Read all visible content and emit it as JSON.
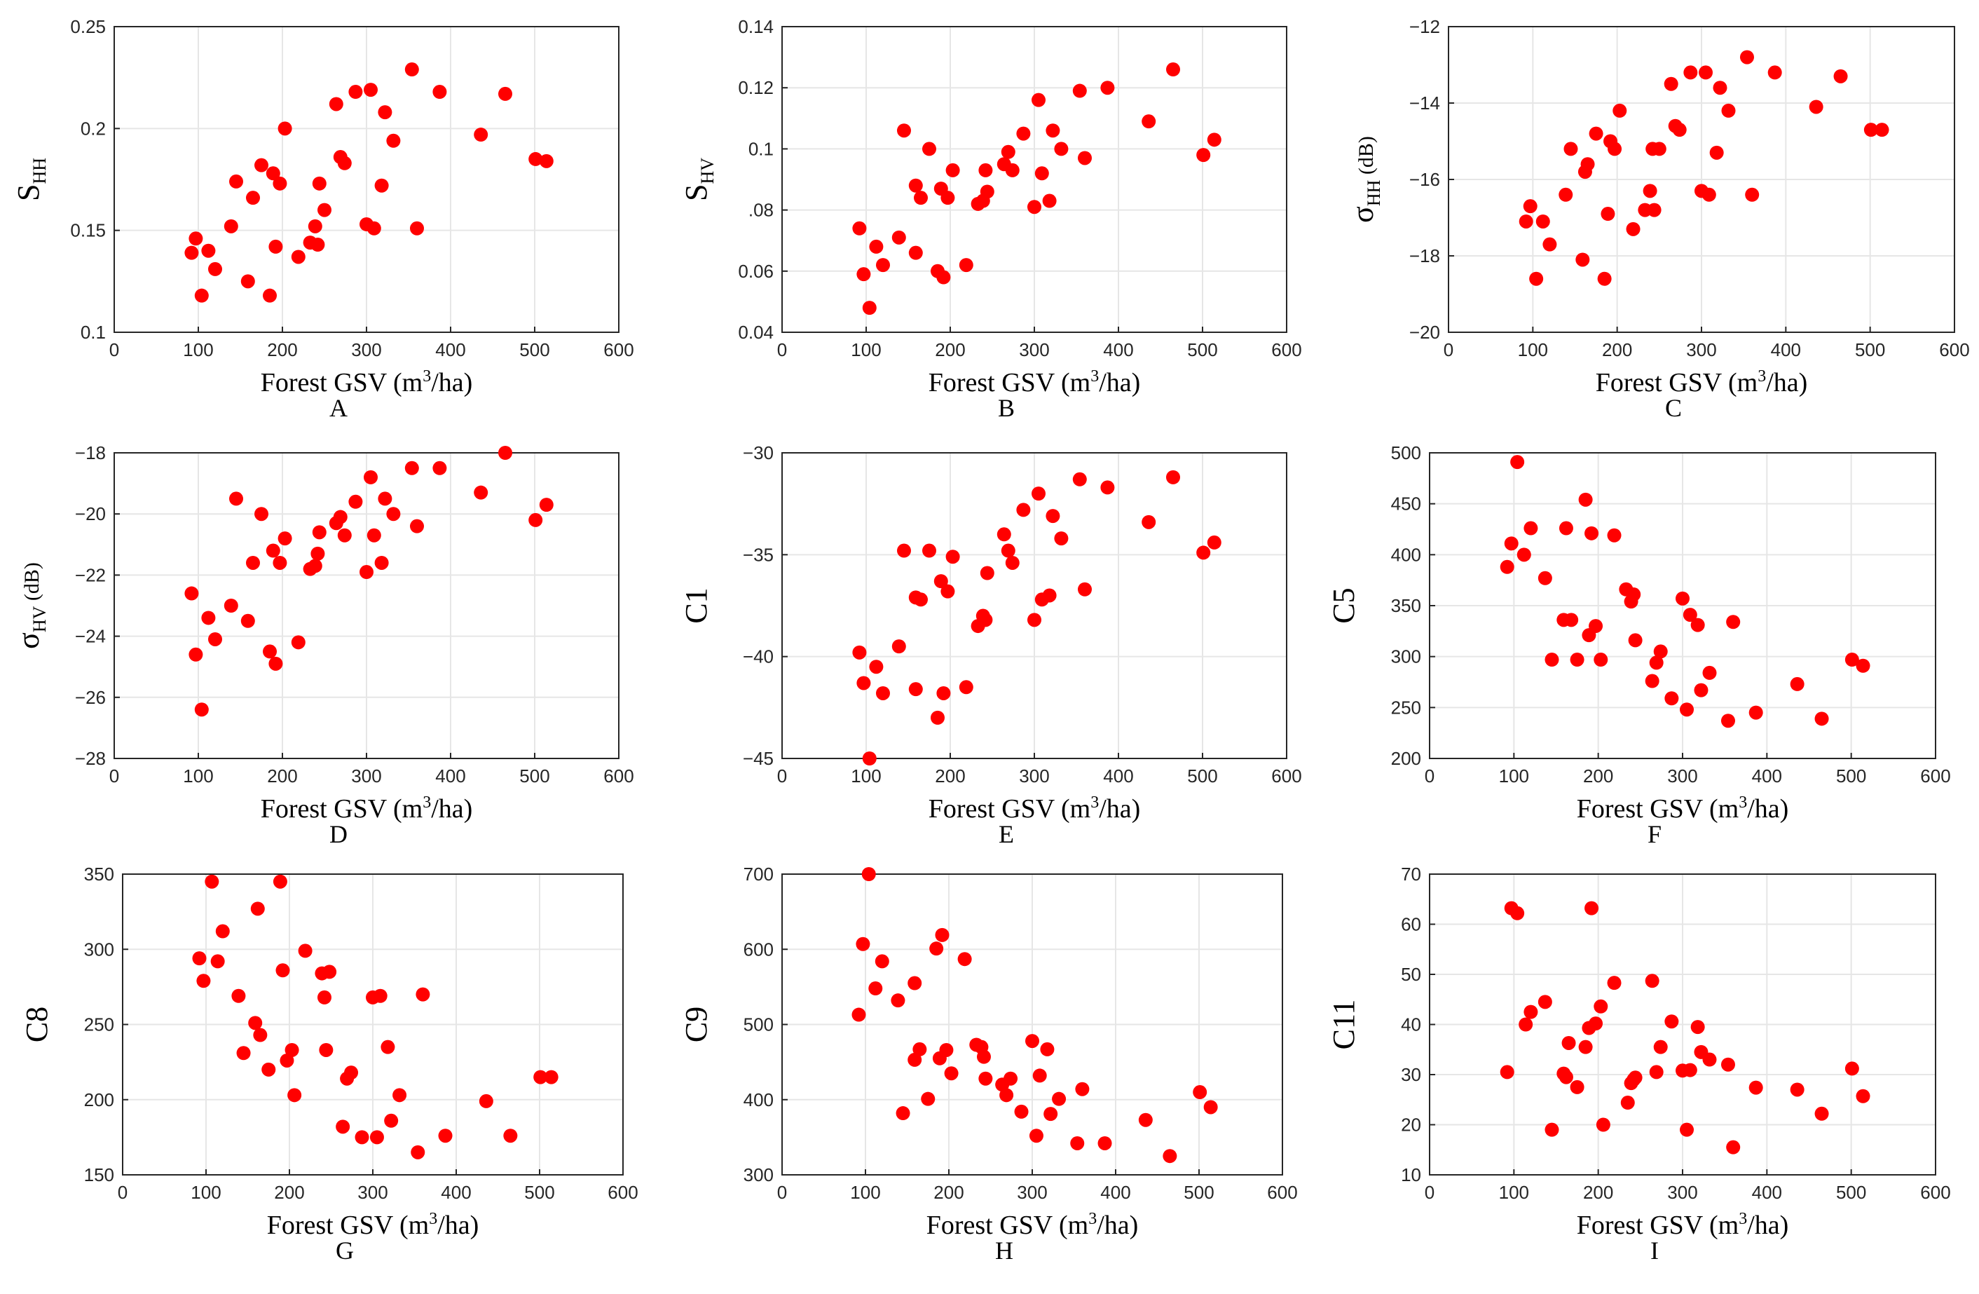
{
  "colors": {
    "marker": "#ff0000",
    "axis": "#262626",
    "grid": "#e6e6e6"
  },
  "chart_data": [
    {
      "panel": "A",
      "type": "scatter",
      "xlabel": "Forest GSV (m3/ha)",
      "xlabel_main": "Forest GSV (m",
      "xlabel_sup": "3",
      "xlabel_tail": "/ha)",
      "ylabel_main": "S",
      "ylabel_sub": "HH",
      "ylabel_tail": "",
      "xlim": [
        0,
        600
      ],
      "ylim": [
        0.1,
        0.25
      ],
      "xticks": [
        0,
        100,
        200,
        300,
        400,
        500,
        600
      ],
      "yticks": [
        0.1,
        0.15,
        0.2,
        0.25
      ],
      "yticklabels": [
        "0.1",
        "0.15",
        "0.2",
        "0.25"
      ],
      "x": [
        92,
        97,
        104,
        112,
        120,
        139,
        145,
        159,
        165,
        175,
        185,
        189,
        192,
        197,
        203,
        219,
        233,
        239,
        242,
        244,
        250,
        264,
        269,
        274,
        287,
        300,
        305,
        309,
        318,
        322,
        332,
        354,
        360,
        387,
        436,
        465,
        501,
        514
      ],
      "y": [
        0.139,
        0.146,
        0.118,
        0.14,
        0.131,
        0.152,
        0.174,
        0.125,
        0.166,
        0.182,
        0.118,
        0.178,
        0.142,
        0.173,
        0.2,
        0.137,
        0.144,
        0.152,
        0.143,
        0.173,
        0.16,
        0.212,
        0.186,
        0.183,
        0.218,
        0.153,
        0.219,
        0.151,
        0.172,
        0.208,
        0.194,
        0.229,
        0.151,
        0.218,
        0.197,
        0.217,
        0.185,
        0.184
      ]
    },
    {
      "panel": "B",
      "type": "scatter",
      "xlabel": "Forest GSV (m3/ha)",
      "xlabel_main": "Forest GSV (m",
      "xlabel_sup": "3",
      "xlabel_tail": "/ha)",
      "ylabel_main": "S",
      "ylabel_sub": "HV",
      "ylabel_tail": "",
      "xlim": [
        0,
        600
      ],
      "ylim": [
        0.04,
        0.14
      ],
      "xticks": [
        0,
        100,
        200,
        300,
        400,
        500,
        600
      ],
      "yticks": [
        0.04,
        0.06,
        0.08,
        0.1,
        0.12,
        0.14
      ],
      "yticklabels": [
        "0.04",
        "0.06",
        ".08",
        "0.1",
        "0.12",
        "0.14"
      ],
      "x": [
        92,
        97,
        104,
        112,
        120,
        139,
        145,
        159,
        159,
        165,
        175,
        185,
        189,
        192,
        197,
        203,
        219,
        233,
        239,
        242,
        244,
        264,
        269,
        274,
        287,
        300,
        305,
        309,
        318,
        322,
        332,
        354,
        360,
        387,
        436,
        465,
        501,
        514
      ],
      "y": [
        0.074,
        0.059,
        0.048,
        0.068,
        0.062,
        0.071,
        0.106,
        0.066,
        0.088,
        0.084,
        0.1,
        0.06,
        0.087,
        0.058,
        0.084,
        0.093,
        0.062,
        0.082,
        0.083,
        0.093,
        0.086,
        0.095,
        0.099,
        0.093,
        0.105,
        0.081,
        0.116,
        0.092,
        0.083,
        0.106,
        0.1,
        0.119,
        0.097,
        0.12,
        0.109,
        0.126,
        0.098,
        0.103
      ]
    },
    {
      "panel": "C",
      "type": "scatter",
      "xlabel": "Forest GSV (m3/ha)",
      "xlabel_main": "Forest GSV (m",
      "xlabel_sup": "3",
      "xlabel_tail": "/ha)",
      "ylabel_main": "σ",
      "ylabel_sub": "HH",
      "ylabel_tail": " (dB)",
      "xlim": [
        0,
        600
      ],
      "ylim": [
        -20,
        -12
      ],
      "xticks": [
        0,
        100,
        200,
        300,
        400,
        500,
        600
      ],
      "yticks": [
        -20,
        -18,
        -16,
        -14,
        -12
      ],
      "yticklabels": [
        "−20",
        "−18",
        "−16",
        "−14",
        "−12"
      ],
      "x": [
        92,
        97,
        104,
        112,
        120,
        139,
        145,
        159,
        162,
        165,
        175,
        185,
        189,
        192,
        197,
        203,
        219,
        233,
        239,
        242,
        244,
        250,
        264,
        269,
        274,
        287,
        300,
        305,
        309,
        318,
        322,
        332,
        354,
        360,
        387,
        436,
        465,
        501,
        514
      ],
      "y": [
        -17.1,
        -16.7,
        -18.6,
        -17.1,
        -17.7,
        -16.4,
        -15.2,
        -18.1,
        -15.8,
        -15.6,
        -14.8,
        -18.6,
        -16.9,
        -15.0,
        -15.2,
        -14.2,
        -17.3,
        -16.8,
        -16.3,
        -15.2,
        -16.8,
        -15.2,
        -13.5,
        -14.6,
        -14.7,
        -13.2,
        -16.3,
        -13.2,
        -16.4,
        -15.3,
        -13.6,
        -14.2,
        -12.8,
        -16.4,
        -13.2,
        -14.1,
        -13.3,
        -14.7,
        -14.7
      ]
    },
    {
      "panel": "D",
      "type": "scatter",
      "xlabel": "Forest GSV (m3/ha)",
      "xlabel_main": "Forest GSV (m",
      "xlabel_sup": "3",
      "xlabel_tail": "/ha)",
      "ylabel_main": "σ",
      "ylabel_sub": "HV",
      "ylabel_tail": " (dB)",
      "xlim": [
        0,
        600
      ],
      "ylim": [
        -28,
        -18
      ],
      "xticks": [
        0,
        100,
        200,
        300,
        400,
        500,
        600
      ],
      "yticks": [
        -28,
        -26,
        -24,
        -22,
        -20,
        -18
      ],
      "yticklabels": [
        "−28",
        "−26",
        "−24",
        "−22",
        "−20",
        "−18"
      ],
      "x": [
        92,
        97,
        104,
        112,
        120,
        139,
        145,
        159,
        165,
        175,
        185,
        189,
        192,
        197,
        203,
        219,
        233,
        239,
        242,
        244,
        264,
        269,
        274,
        287,
        300,
        305,
        309,
        318,
        322,
        332,
        354,
        360,
        387,
        436,
        465,
        501,
        514
      ],
      "y": [
        -22.6,
        -24.6,
        -26.4,
        -23.4,
        -24.1,
        -23.0,
        -19.5,
        -23.5,
        -21.6,
        -20.0,
        -24.5,
        -21.2,
        -24.9,
        -21.6,
        -20.8,
        -24.2,
        -21.8,
        -21.7,
        -21.3,
        -20.6,
        -20.3,
        -20.1,
        -20.7,
        -19.6,
        -21.9,
        -18.8,
        -20.7,
        -21.6,
        -19.5,
        -20.0,
        -18.5,
        -20.4,
        -18.5,
        -19.3,
        -18.0,
        -20.2,
        -19.7
      ]
    },
    {
      "panel": "E",
      "type": "scatter",
      "xlabel": "Forest GSV (m3/ha)",
      "xlabel_main": "Forest GSV (m",
      "xlabel_sup": "3",
      "xlabel_tail": "/ha)",
      "ylabel_main": "C1",
      "ylabel_sub": "",
      "ylabel_tail": "",
      "xlim": [
        0,
        600
      ],
      "ylim": [
        -45,
        -30
      ],
      "xticks": [
        0,
        100,
        200,
        300,
        400,
        500,
        600
      ],
      "yticks": [
        -45,
        -40,
        -35,
        -30
      ],
      "yticklabels": [
        "−45",
        "−40",
        "−35",
        "−30"
      ],
      "x": [
        92,
        97,
        104,
        112,
        120,
        139,
        145,
        159,
        159,
        165,
        175,
        185,
        189,
        192,
        197,
        203,
        219,
        233,
        239,
        242,
        244,
        264,
        269,
        274,
        287,
        300,
        305,
        309,
        318,
        322,
        332,
        354,
        360,
        387,
        436,
        465,
        501,
        514
      ],
      "y": [
        -39.8,
        -41.3,
        -45.0,
        -40.5,
        -41.8,
        -39.5,
        -34.8,
        -37.1,
        -41.6,
        -37.2,
        -34.8,
        -43.0,
        -36.3,
        -41.8,
        -36.8,
        -35.1,
        -41.5,
        -38.5,
        -38.0,
        -38.2,
        -35.9,
        -34.0,
        -34.8,
        -35.4,
        -32.8,
        -38.2,
        -32.0,
        -37.2,
        -37.0,
        -33.1,
        -34.2,
        -31.3,
        -36.7,
        -31.7,
        -33.4,
        -31.2,
        -34.9,
        -34.4
      ]
    },
    {
      "panel": "F",
      "type": "scatter",
      "xlabel": "Forest GSV (m3/ha)",
      "xlabel_main": "Forest GSV (m",
      "xlabel_sup": "3",
      "xlabel_tail": "/ha)",
      "ylabel_main": "C5",
      "ylabel_sub": "",
      "ylabel_tail": "",
      "xlim": [
        0,
        600
      ],
      "ylim": [
        200,
        500
      ],
      "xticks": [
        0,
        100,
        200,
        300,
        400,
        500,
        600
      ],
      "yticks": [
        200,
        250,
        300,
        350,
        400,
        450,
        500
      ],
      "yticklabels": [
        "200",
        "250",
        "300",
        "350",
        "400",
        "450",
        "500"
      ],
      "x": [
        92,
        97,
        104,
        112,
        120,
        137,
        145,
        159,
        162,
        168,
        175,
        185,
        189,
        192,
        197,
        203,
        219,
        233,
        239,
        242,
        244,
        264,
        269,
        274,
        287,
        300,
        305,
        309,
        318,
        322,
        332,
        354,
        360,
        387,
        436,
        465,
        501,
        514
      ],
      "y": [
        388,
        411,
        491,
        400,
        426,
        377,
        297,
        336,
        426,
        336,
        297,
        454,
        321,
        421,
        330,
        297,
        419,
        366,
        354,
        361,
        316,
        276,
        294,
        305,
        259,
        357,
        248,
        341,
        331,
        267,
        284,
        237,
        334,
        245,
        273,
        239,
        297,
        291
      ]
    },
    {
      "panel": "G",
      "type": "scatter",
      "xlabel": "Forest GSV (m3/ha)",
      "xlabel_main": "Forest GSV (m",
      "xlabel_sup": "3",
      "xlabel_tail": "/ha)",
      "ylabel_main": "C8",
      "ylabel_sub": "",
      "ylabel_tail": "",
      "xlim": [
        0,
        600
      ],
      "ylim": [
        150,
        350
      ],
      "xticks": [
        0,
        100,
        200,
        300,
        400,
        500,
        600
      ],
      "yticks": [
        150,
        200,
        250,
        300,
        350
      ],
      "yticklabels": [
        "150",
        "200",
        "250",
        "300",
        "350"
      ],
      "x": [
        92,
        97,
        107,
        114,
        120,
        139,
        145,
        159,
        162,
        165,
        175,
        189,
        192,
        197,
        203,
        206,
        219,
        239,
        242,
        244,
        248,
        264,
        269,
        274,
        287,
        300,
        305,
        309,
        318,
        322,
        332,
        354,
        360,
        387,
        436,
        465,
        501,
        514
      ],
      "y": [
        294,
        279,
        345,
        292,
        312,
        269,
        231,
        251,
        327,
        243,
        220,
        345,
        286,
        226,
        233,
        203,
        299,
        284,
        268,
        233,
        285,
        182,
        214,
        218,
        175,
        268,
        175,
        269,
        235,
        186,
        203,
        165,
        270,
        176,
        199,
        176,
        215,
        215
      ]
    },
    {
      "panel": "H",
      "type": "scatter",
      "xlabel": "Forest GSV (m3/ha)",
      "xlabel_main": "Forest GSV (m",
      "xlabel_sup": "3",
      "xlabel_tail": "/ha)",
      "ylabel_main": "C9",
      "ylabel_sub": "",
      "ylabel_tail": "",
      "xlim": [
        0,
        600
      ],
      "ylim": [
        300,
        700
      ],
      "xticks": [
        0,
        100,
        200,
        300,
        400,
        500,
        600
      ],
      "yticks": [
        300,
        400,
        500,
        600,
        700
      ],
      "yticklabels": [
        "300",
        "400",
        "500",
        "600",
        "700"
      ],
      "x": [
        92,
        97,
        104,
        112,
        120,
        139,
        145,
        159,
        159,
        165,
        175,
        185,
        189,
        192,
        197,
        203,
        219,
        233,
        239,
        242,
        244,
        264,
        269,
        274,
        287,
        300,
        305,
        309,
        318,
        322,
        332,
        354,
        360,
        387,
        436,
        465,
        501,
        514
      ],
      "y": [
        513,
        607,
        700,
        548,
        584,
        532,
        382,
        453,
        555,
        467,
        401,
        601,
        455,
        619,
        466,
        435,
        587,
        473,
        470,
        457,
        428,
        420,
        406,
        428,
        384,
        478,
        352,
        432,
        467,
        381,
        401,
        342,
        414,
        342,
        373,
        325,
        410,
        390
      ]
    },
    {
      "panel": "I",
      "type": "scatter",
      "xlabel": "Forest GSV (m3/ha)",
      "xlabel_main": "Forest GSV (m",
      "xlabel_sup": "3",
      "xlabel_tail": "/ha)",
      "ylabel_main": "C11",
      "ylabel_sub": "",
      "ylabel_tail": "",
      "xlim": [
        0,
        600
      ],
      "ylim": [
        10,
        70
      ],
      "xticks": [
        0,
        100,
        200,
        300,
        400,
        500,
        600
      ],
      "yticks": [
        10,
        20,
        30,
        40,
        50,
        60,
        70
      ],
      "yticklabels": [
        "10",
        "20",
        "30",
        "40",
        "50",
        "60",
        "70"
      ],
      "x": [
        92,
        97,
        104,
        114,
        120,
        137,
        145,
        159,
        162,
        165,
        175,
        185,
        189,
        192,
        197,
        203,
        206,
        219,
        235,
        239,
        242,
        244,
        264,
        269,
        274,
        287,
        300,
        305,
        309,
        318,
        322,
        332,
        354,
        360,
        387,
        436,
        465,
        501,
        514
      ],
      "y": [
        30.5,
        63.2,
        62.2,
        40.0,
        42.5,
        44.5,
        19.0,
        30.2,
        29.5,
        36.3,
        27.5,
        35.5,
        39.3,
        63.2,
        40.2,
        43.6,
        20.0,
        48.3,
        24.4,
        28.3,
        29.0,
        29.4,
        48.7,
        30.5,
        35.5,
        40.6,
        30.8,
        19.0,
        30.9,
        39.5,
        34.5,
        33.0,
        32.0,
        15.5,
        27.4,
        27.0,
        22.2,
        31.2,
        25.7
      ]
    }
  ]
}
